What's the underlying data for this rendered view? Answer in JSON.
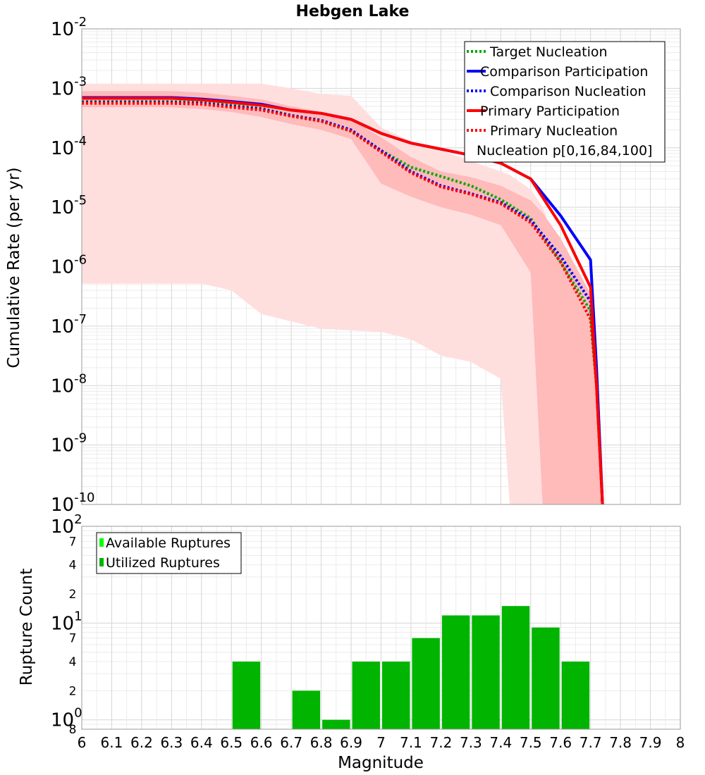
{
  "chart_data": [
    {
      "type": "line",
      "title": "Hebgen Lake",
      "xlabel": "Magnitude",
      "ylabel": "Cumulative Rate (per yr)",
      "yscale": "log",
      "xlim": [
        6,
        8
      ],
      "ylim_log10": [
        -10,
        -2
      ],
      "y_ticks": [
        {
          "base": "10",
          "exp": "-2"
        },
        {
          "base": "10",
          "exp": "-3"
        },
        {
          "base": "10",
          "exp": "-4"
        },
        {
          "base": "10",
          "exp": "-5"
        },
        {
          "base": "10",
          "exp": "-6"
        },
        {
          "base": "10",
          "exp": "-7"
        },
        {
          "base": "10",
          "exp": "-8"
        },
        {
          "base": "10",
          "exp": "-9"
        },
        {
          "base": "10",
          "exp": "-10"
        }
      ],
      "x_ticks": [
        "6",
        "6.1",
        "6.2",
        "6.3",
        "6.4",
        "6.5",
        "6.6",
        "6.7",
        "6.8",
        "6.9",
        "7",
        "7.1",
        "7.2",
        "7.3",
        "7.4",
        "7.5",
        "7.6",
        "7.7",
        "7.8",
        "7.9",
        "8"
      ],
      "legend": {
        "position": "top-right",
        "entries": [
          {
            "label": "Target Nucleation",
            "color": "#00aa00",
            "style": "dotted"
          },
          {
            "label": "Comparison Participation",
            "color": "#0000ff",
            "style": "solid"
          },
          {
            "label": "Comparison Nucleation",
            "color": "#0000ff",
            "style": "dotted"
          },
          {
            "label": "Primary Participation",
            "color": "#ff0000",
            "style": "solid"
          },
          {
            "label": "Primary Nucleation",
            "color": "#ff0000",
            "style": "dotted"
          },
          {
            "label": "Nucleation p[0,16,84,100]",
            "color": "#ffb3b3",
            "style": "band"
          }
        ]
      },
      "bands": [
        {
          "name": "Nucleation p[0,100]",
          "color": "#ffdede",
          "x": [
            6.0,
            6.1,
            6.2,
            6.3,
            6.4,
            6.5,
            6.6,
            6.7,
            6.8,
            6.9,
            7.0,
            7.1,
            7.2,
            7.3,
            7.4,
            7.43,
            7.5,
            7.54,
            7.6,
            7.7,
            7.74
          ],
          "low": [
            5.2e-07,
            5.2e-07,
            5.2e-07,
            5.2e-07,
            5.2e-07,
            4e-07,
            1.6e-07,
            1.2e-07,
            9e-08,
            8.5e-08,
            8e-08,
            6e-08,
            3.2e-08,
            2.5e-08,
            1.3e-08,
            1e-10,
            1e-10,
            1e-10,
            1e-10,
            1e-10,
            1e-10
          ],
          "high": [
            0.0012,
            0.0012,
            0.0012,
            0.0012,
            0.0012,
            0.0012,
            0.0012,
            0.001,
            0.0008,
            0.00075,
            0.00022,
            0.00013,
            9e-05,
            6e-05,
            4e-05,
            3.5e-05,
            2e-05,
            1e-05,
            1.5e-06,
            3e-07,
            1e-10
          ]
        },
        {
          "name": "Nucleation p[16,84]",
          "color": "#ffbaba",
          "x": [
            6.0,
            6.1,
            6.2,
            6.3,
            6.4,
            6.5,
            6.6,
            6.7,
            6.8,
            6.9,
            7.0,
            7.1,
            7.2,
            7.3,
            7.4,
            7.5,
            7.54,
            7.6,
            7.7,
            7.74
          ],
          "low": [
            0.00048,
            0.00048,
            0.00048,
            0.00048,
            0.00045,
            0.0004,
            0.00033,
            0.00025,
            0.0002,
            0.00014,
            2.5e-05,
            1.5e-05,
            1e-05,
            7.5e-06,
            5e-06,
            8e-07,
            1e-10,
            1e-10,
            1e-10,
            1e-10
          ],
          "high": [
            0.0009,
            0.0009,
            0.0009,
            0.0009,
            0.00085,
            0.00075,
            0.00065,
            0.0005,
            0.0004,
            0.0003,
            0.00015,
            7e-05,
            4e-05,
            3.2e-05,
            2.3e-05,
            1.3e-05,
            8e-06,
            3e-06,
            3.5e-07,
            1e-10
          ]
        }
      ],
      "series": [
        {
          "name": "Target Nucleation",
          "color": "#00aa00",
          "style": "dotted",
          "x": [
            6.0,
            6.1,
            6.2,
            6.3,
            6.4,
            6.5,
            6.6,
            6.7,
            6.8,
            6.9,
            7.0,
            7.1,
            7.2,
            7.3,
            7.4,
            7.5,
            7.6,
            7.7,
            7.72,
            7.74
          ],
          "y": [
            0.0006,
            0.0006,
            0.0006,
            0.0006,
            0.00058,
            0.00052,
            0.00046,
            0.00035,
            0.00028,
            0.00019,
            9e-05,
            4.7e-05,
            3.3e-05,
            2.3e-05,
            1.35e-05,
            6.5e-06,
            1.2e-06,
            1.8e-07,
            1e-08,
            1e-10
          ]
        },
        {
          "name": "Comparison Participation",
          "color": "#0000ff",
          "style": "solid",
          "x": [
            6.0,
            6.1,
            6.2,
            6.3,
            6.4,
            6.5,
            6.6,
            6.7,
            6.8,
            6.9,
            7.0,
            7.1,
            7.2,
            7.3,
            7.4,
            7.5,
            7.6,
            7.7,
            7.72,
            7.74
          ],
          "y": [
            0.0007,
            0.0007,
            0.0007,
            0.0007,
            0.00066,
            0.0006,
            0.00054,
            0.00043,
            0.00038,
            0.0003,
            0.000175,
            0.00012,
            9.5e-05,
            7.5e-05,
            5.5e-05,
            3e-05,
            7.2e-06,
            1.3e-06,
            2e-08,
            1e-10
          ]
        },
        {
          "name": "Comparison Nucleation",
          "color": "#0000ff",
          "style": "dotted",
          "x": [
            6.0,
            6.1,
            6.2,
            6.3,
            6.4,
            6.5,
            6.6,
            6.7,
            6.8,
            6.9,
            7.0,
            7.1,
            7.2,
            7.3,
            7.4,
            7.5,
            7.6,
            7.7,
            7.72,
            7.74
          ],
          "y": [
            0.00058,
            0.00058,
            0.00058,
            0.00058,
            0.00056,
            0.0005,
            0.00045,
            0.00035,
            0.00029,
            0.0002,
            9e-05,
            4e-05,
            2.3e-05,
            1.7e-05,
            1.2e-05,
            6e-06,
            1.5e-06,
            2.6e-07,
            1e-08,
            1e-10
          ]
        },
        {
          "name": "Primary Participation",
          "color": "#ff0000",
          "style": "solid",
          "x": [
            6.0,
            6.1,
            6.2,
            6.3,
            6.4,
            6.5,
            6.6,
            6.7,
            6.8,
            6.9,
            7.0,
            7.1,
            7.2,
            7.3,
            7.4,
            7.5,
            7.6,
            7.7,
            7.72,
            7.74
          ],
          "y": [
            0.00068,
            0.00068,
            0.00068,
            0.00068,
            0.00064,
            0.00058,
            0.00052,
            0.00043,
            0.00038,
            0.0003,
            0.000175,
            0.00012,
            9.5e-05,
            7.5e-05,
            5.5e-05,
            3e-05,
            5e-06,
            4.5e-07,
            1e-08,
            1e-10
          ]
        },
        {
          "name": "Primary Nucleation",
          "color": "#ff0000",
          "style": "dotted",
          "x": [
            6.0,
            6.1,
            6.2,
            6.3,
            6.4,
            6.5,
            6.6,
            6.7,
            6.8,
            6.9,
            7.0,
            7.1,
            7.2,
            7.3,
            7.4,
            7.5,
            7.6,
            7.7,
            7.72,
            7.74
          ],
          "y": [
            0.00056,
            0.00056,
            0.00056,
            0.00056,
            0.00054,
            0.00048,
            0.00043,
            0.00034,
            0.00028,
            0.00019,
            8.5e-05,
            3.8e-05,
            2.2e-05,
            1.65e-05,
            1.15e-05,
            5.5e-06,
            1.2e-06,
            1.3e-07,
            1e-08,
            1e-10
          ]
        }
      ]
    },
    {
      "type": "bar",
      "xlabel": "Magnitude",
      "ylabel": "Rupture Count",
      "yscale": "log",
      "xlim": [
        6,
        8
      ],
      "ylim": [
        0.8,
        100
      ],
      "bin_width": 0.1,
      "bar_color": "#00b400",
      "y_ticks": [
        {
          "value": 100,
          "base": "10",
          "exp": "2",
          "major": true
        },
        {
          "value": 70,
          "label": "7",
          "major": false
        },
        {
          "value": 40,
          "label": "4",
          "major": false
        },
        {
          "value": 20,
          "label": "2",
          "major": false
        },
        {
          "value": 10,
          "base": "10",
          "exp": "1",
          "major": true
        },
        {
          "value": 7,
          "label": "7",
          "major": false
        },
        {
          "value": 4,
          "label": "4",
          "major": false
        },
        {
          "value": 2,
          "label": "2",
          "major": false
        },
        {
          "value": 1,
          "base": "10",
          "exp": "0",
          "major": true
        },
        {
          "value": 0.8,
          "label": "8",
          "major": false
        }
      ],
      "legend": {
        "position": "top-left",
        "entries": [
          {
            "label": "Available Ruptures",
            "color": "#00ff00"
          },
          {
            "label": "Utilized Ruptures",
            "color": "#00b400"
          }
        ]
      },
      "bars": [
        {
          "x": 6.55,
          "value": 4
        },
        {
          "x": 6.75,
          "value": 2
        },
        {
          "x": 6.85,
          "value": 1
        },
        {
          "x": 6.95,
          "value": 4
        },
        {
          "x": 7.05,
          "value": 4
        },
        {
          "x": 7.15,
          "value": 7
        },
        {
          "x": 7.25,
          "value": 12
        },
        {
          "x": 7.35,
          "value": 12
        },
        {
          "x": 7.45,
          "value": 15
        },
        {
          "x": 7.55,
          "value": 9
        },
        {
          "x": 7.65,
          "value": 4
        }
      ]
    }
  ]
}
